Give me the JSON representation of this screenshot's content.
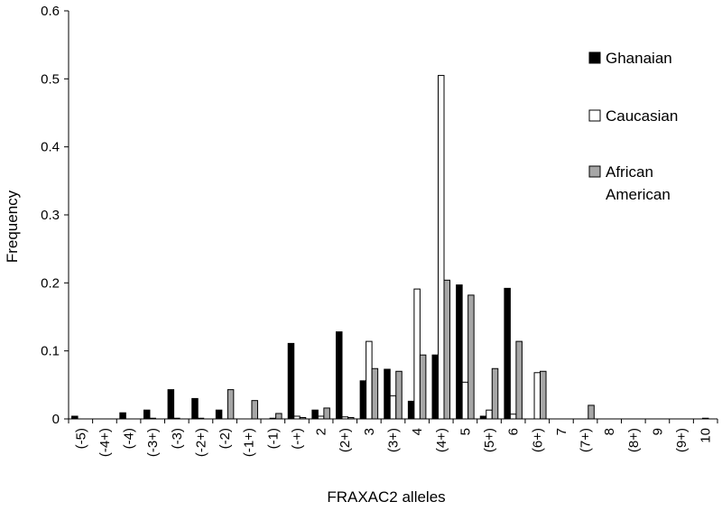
{
  "chart_data": {
    "type": "bar",
    "xlabel": "FRAXAC2 alleles",
    "ylabel": "Frequency",
    "ylim": [
      0,
      0.6
    ],
    "yticks": [
      "0",
      "0.1",
      "0.2",
      "0.3",
      "0.4",
      "0.5",
      "0.6"
    ],
    "legend_position": "right",
    "categories": [
      "(-5)",
      "(-4+)",
      "(-4)",
      "(-3+)",
      "(-3)",
      "(-2+)",
      "(-2)",
      "(-1+)",
      "(-1)",
      "(-+)",
      "2",
      "(2+)",
      "3",
      "(3+)",
      "4",
      "(4+)",
      "5",
      "(5+)",
      "6",
      "(6+)",
      "7",
      "(7+)",
      "8",
      "(8+)",
      "9",
      "(9+)",
      "10"
    ],
    "series": [
      {
        "name": "Ghanaian",
        "color": "#000000",
        "values": [
          0.004,
          0,
          0.009,
          0.013,
          0.043,
          0.03,
          0.013,
          0,
          0,
          0.111,
          0.013,
          0.128,
          0.056,
          0.073,
          0.026,
          0.094,
          0.197,
          0.004,
          0.192,
          0,
          0,
          0,
          0,
          0,
          0,
          0,
          0
        ]
      },
      {
        "name": "Caucasian",
        "color": "#ffffff",
        "values": [
          0,
          0,
          0,
          0.001,
          0.001,
          0.001,
          0,
          0,
          0.001,
          0.004,
          0.004,
          0.003,
          0.114,
          0.034,
          0.191,
          0.505,
          0.054,
          0.013,
          0.007,
          0.068,
          0,
          0,
          0,
          0,
          0,
          0,
          0.001
        ]
      },
      {
        "name": "African American",
        "color": "#a6a6a6",
        "values": [
          0,
          0,
          0,
          0,
          0,
          0,
          0.043,
          0.027,
          0.008,
          0.002,
          0.016,
          0.002,
          0.074,
          0.07,
          0.094,
          0.204,
          0.182,
          0.074,
          0.114,
          0.07,
          0,
          0.02,
          0,
          0,
          0,
          0,
          0
        ]
      }
    ],
    "legend": {
      "ghanaian": "Ghanaian",
      "caucasian": "Caucasian",
      "african_line1": "African",
      "african_line2": "American"
    }
  }
}
